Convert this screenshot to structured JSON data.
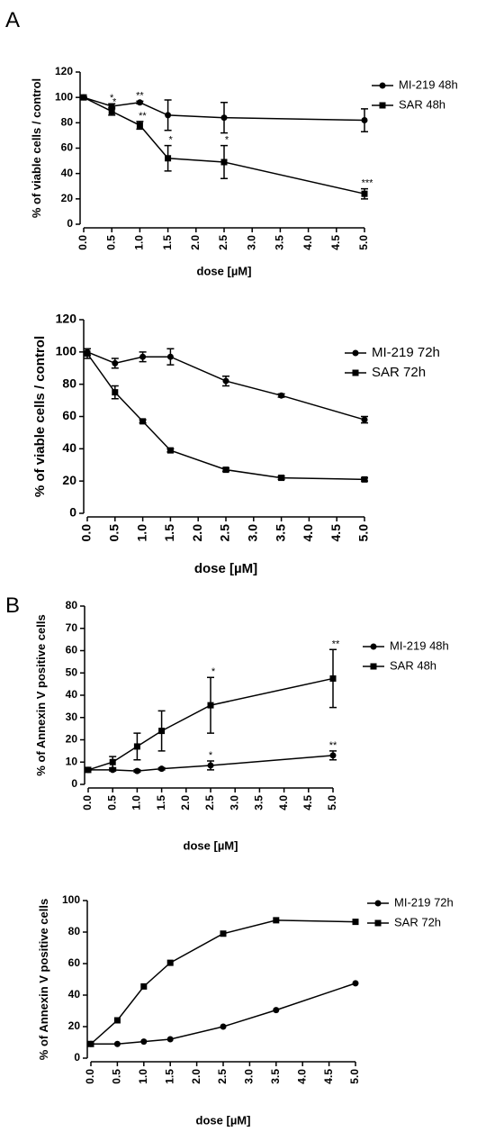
{
  "panel_labels": [
    "A",
    "B"
  ],
  "chart_data": [
    {
      "type": "line",
      "ylabel": "% of viable cells / control",
      "xlabel": "dose [µM]",
      "x": [
        0,
        0.5,
        1,
        1.5,
        2.5,
        5
      ],
      "xlim": [
        0,
        5
      ],
      "ylim": [
        0,
        120
      ],
      "xticks": [
        {
          "value": 0,
          "label": "0.0"
        },
        0.5,
        {
          "value": 1,
          "label": "1.0"
        },
        1.5,
        {
          "value": 2,
          "label": "2.0"
        },
        2.5,
        {
          "value": 3,
          "label": "3.0"
        },
        3.5,
        {
          "value": 4,
          "label": "4.0"
        },
        4.5,
        {
          "value": 5,
          "label": "5.0"
        }
      ],
      "yticks": [
        0,
        20,
        40,
        60,
        80,
        100,
        120
      ],
      "legend": "right",
      "series": [
        {
          "name": "MI-219 48h",
          "color": "#000000",
          "marker": "circle",
          "values": [
            100,
            93,
            96,
            86,
            84,
            82
          ],
          "errors": [
            0,
            2,
            1,
            12,
            12,
            9
          ],
          "annotations": [
            null,
            "*",
            "**",
            null,
            null,
            null
          ]
        },
        {
          "name": "SAR 48h",
          "color": "#000000",
          "marker": "square",
          "values": [
            100,
            89,
            78,
            52,
            49,
            24
          ],
          "errors": [
            0,
            3,
            3,
            10,
            13,
            4
          ],
          "annotations": [
            null,
            "*",
            "**",
            "*",
            "*",
            "***"
          ]
        }
      ]
    },
    {
      "type": "line",
      "ylabel": "% of viable cells / control",
      "xlabel": "dose [µM]",
      "x": [
        0,
        0.5,
        1,
        1.5,
        2.5,
        3.5,
        5
      ],
      "xlim": [
        0,
        5
      ],
      "ylim": [
        0,
        120
      ],
      "xticks": [
        {
          "value": 0,
          "label": "0.0"
        },
        0.5,
        {
          "value": 1,
          "label": "1.0"
        },
        1.5,
        {
          "value": 2,
          "label": "2.0"
        },
        2.5,
        {
          "value": 3,
          "label": "3.0"
        },
        3.5,
        {
          "value": 4,
          "label": "4.0"
        },
        4.5,
        {
          "value": 5,
          "label": "5.0"
        }
      ],
      "yticks": [
        0,
        20,
        40,
        60,
        80,
        100,
        120
      ],
      "legend": "right",
      "series": [
        {
          "name": "MI-219 72h",
          "color": "#000000",
          "marker": "circle",
          "values": [
            100,
            93,
            97,
            97,
            82,
            73,
            58
          ],
          "errors": [
            2,
            3,
            3,
            5,
            3,
            1,
            2
          ]
        },
        {
          "name": "SAR 72h",
          "color": "#000000",
          "marker": "square",
          "values": [
            99,
            75,
            57,
            39,
            27,
            22,
            21
          ],
          "errors": [
            3,
            4,
            1,
            1,
            1,
            1,
            1
          ]
        }
      ]
    },
    {
      "type": "line",
      "ylabel": "% of Annexin V positive cells",
      "xlabel": "dose [µM]",
      "x": [
        0,
        0.5,
        1,
        1.5,
        2.5,
        5
      ],
      "xlim": [
        0,
        5
      ],
      "ylim": [
        0,
        80
      ],
      "xticks": [
        {
          "value": 0,
          "label": "0.0"
        },
        0.5,
        {
          "value": 1,
          "label": "1.0"
        },
        1.5,
        {
          "value": 2,
          "label": "2.0"
        },
        2.5,
        {
          "value": 3,
          "label": "3.0"
        },
        3.5,
        {
          "value": 4,
          "label": "4.0"
        },
        4.5,
        {
          "value": 5,
          "label": "5.0"
        }
      ],
      "yticks": [
        0,
        10,
        20,
        30,
        40,
        50,
        60,
        70,
        80
      ],
      "legend": "right",
      "series": [
        {
          "name": "MI-219 48h",
          "color": "#000000",
          "marker": "circle",
          "values": [
            6.5,
            6.5,
            6,
            7,
            8.5,
            13
          ],
          "errors": [
            0,
            0.5,
            0.5,
            0.5,
            2,
            2
          ],
          "annotations": [
            null,
            null,
            null,
            null,
            "*",
            "**"
          ]
        },
        {
          "name": "SAR 48h",
          "color": "#000000",
          "marker": "square",
          "values": [
            6.5,
            10,
            17,
            24,
            35.5,
            47.5
          ],
          "errors": [
            0,
            2.5,
            6,
            9,
            12.5,
            13
          ],
          "annotations": [
            null,
            null,
            null,
            null,
            "*",
            "**"
          ]
        }
      ]
    },
    {
      "type": "line",
      "ylabel": "% of Annexin V positive cells",
      "xlabel": "dose [µM]",
      "x": [
        0,
        0.5,
        1,
        1.5,
        2.5,
        3.5,
        5
      ],
      "xlim": [
        0,
        5
      ],
      "ylim": [
        0,
        100
      ],
      "xticks": [
        {
          "value": 0,
          "label": "0.0"
        },
        0.5,
        {
          "value": 1,
          "label": "1.0"
        },
        1.5,
        {
          "value": 2,
          "label": "2.0"
        },
        2.5,
        {
          "value": 3,
          "label": "3.0"
        },
        3.5,
        {
          "value": 4,
          "label": "4.0"
        },
        4.5,
        {
          "value": 5,
          "label": "5.0"
        }
      ],
      "yticks": [
        0,
        20,
        40,
        60,
        80,
        100
      ],
      "legend": "right",
      "series": [
        {
          "name": "MI-219 72h",
          "color": "#000000",
          "marker": "circle",
          "values": [
            9,
            9,
            10.5,
            12,
            20,
            30.5,
            47.5
          ]
        },
        {
          "name": "SAR 72h",
          "color": "#000000",
          "marker": "square",
          "values": [
            9,
            24,
            45.5,
            60.5,
            79,
            87.5,
            86.5
          ]
        }
      ]
    }
  ]
}
